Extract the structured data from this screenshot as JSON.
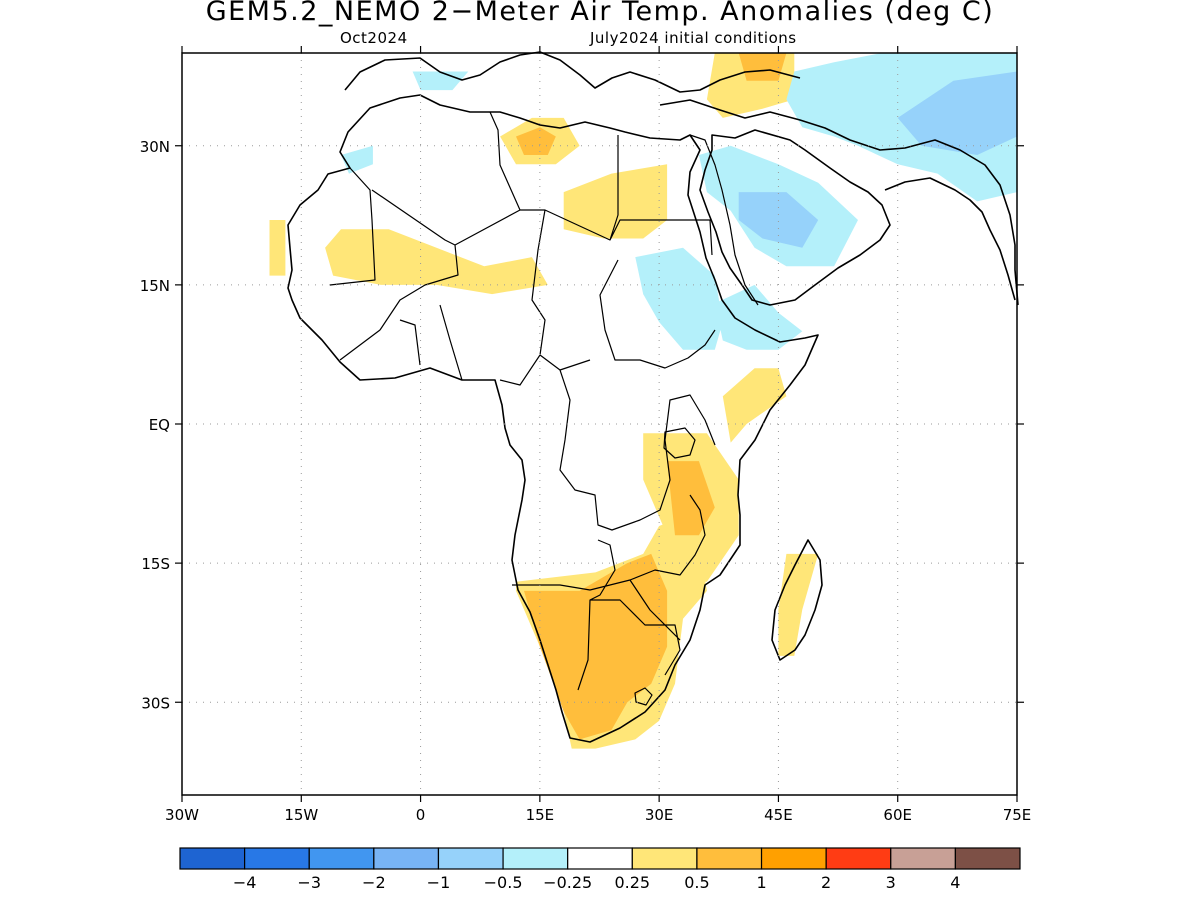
{
  "title": "GEM5.2_NEMO 2−Meter Air Temp. Anomalies (deg C)",
  "subtitle_left": "Oct2024",
  "subtitle_right": "July2024 initial conditions",
  "map": {
    "lon_range": [
      -30,
      75
    ],
    "lat_range": [
      -40,
      40
    ],
    "x_ticks": [
      {
        "value": -30,
        "label": "30W"
      },
      {
        "value": -15,
        "label": "15W"
      },
      {
        "value": 0,
        "label": "0"
      },
      {
        "value": 15,
        "label": "15E"
      },
      {
        "value": 30,
        "label": "30E"
      },
      {
        "value": 45,
        "label": "45E"
      },
      {
        "value": 60,
        "label": "60E"
      },
      {
        "value": 75,
        "label": "75E"
      }
    ],
    "y_ticks": [
      {
        "value": 30,
        "label": "30N"
      },
      {
        "value": 15,
        "label": "15N"
      },
      {
        "value": 0,
        "label": "EQ"
      },
      {
        "value": -15,
        "label": "15S"
      },
      {
        "value": -30,
        "label": "30S"
      }
    ],
    "grid": true
  },
  "colorbar": {
    "colors": [
      "#1e64d2",
      "#2878e6",
      "#4196f0",
      "#78b4f5",
      "#96d2fa",
      "#b4f0fa",
      "#ffffff",
      "#ffe678",
      "#ffbe3c",
      "#ffa000",
      "#ff3c14",
      "#c8a096",
      "#7d5046"
    ],
    "labels": [
      "−4",
      "−3",
      "−2",
      "−1",
      "−0.5",
      "−0.25",
      "0.25",
      "0.5",
      "1",
      "2",
      "3",
      "4"
    ]
  },
  "anomaly_regions": [
    {
      "level": "0.5",
      "color": "#ffe678",
      "points": [
        [
          -19,
          22
        ],
        [
          -17,
          22
        ],
        [
          -17,
          16
        ],
        [
          -19,
          16
        ]
      ]
    },
    {
      "level": "0.5",
      "color": "#ffe678",
      "points": [
        [
          -10,
          21
        ],
        [
          -4,
          21
        ],
        [
          2,
          19
        ],
        [
          8,
          17
        ],
        [
          14,
          18
        ],
        [
          16,
          15
        ],
        [
          9,
          14
        ],
        [
          2,
          15
        ],
        [
          -5,
          15
        ],
        [
          -11,
          16
        ],
        [
          -12,
          19
        ]
      ]
    },
    {
      "level": "0.5",
      "color": "#ffe678",
      "points": [
        [
          18,
          25
        ],
        [
          24,
          27
        ],
        [
          31,
          28
        ],
        [
          31,
          22
        ],
        [
          28,
          20
        ],
        [
          23,
          20
        ],
        [
          18,
          21
        ]
      ]
    },
    {
      "level": "0.5",
      "color": "#ffe678",
      "points": [
        [
          10,
          31
        ],
        [
          14,
          33
        ],
        [
          18,
          33
        ],
        [
          20,
          30
        ],
        [
          17,
          28
        ],
        [
          12,
          28
        ]
      ]
    },
    {
      "level": "0.5",
      "color": "#ffe678",
      "points": [
        [
          37,
          40
        ],
        [
          47,
          40
        ],
        [
          47,
          35
        ],
        [
          43,
          34
        ],
        [
          38,
          33
        ],
        [
          36,
          35
        ]
      ]
    },
    {
      "level": "0.5",
      "color": "#ffe678",
      "points": [
        [
          38,
          3
        ],
        [
          42,
          6
        ],
        [
          45,
          6
        ],
        [
          46,
          3
        ],
        [
          41,
          0
        ],
        [
          39,
          -2
        ]
      ]
    },
    {
      "level": "0.5",
      "color": "#ffe678",
      "points": [
        [
          28,
          -1
        ],
        [
          36,
          -1
        ],
        [
          40,
          -6
        ],
        [
          40,
          -12
        ],
        [
          36,
          -17
        ],
        [
          33,
          -17
        ],
        [
          31,
          -12
        ],
        [
          28,
          -6
        ]
      ]
    },
    {
      "level": "0.5",
      "color": "#ffe678",
      "points": [
        [
          12,
          -17
        ],
        [
          22,
          -16
        ],
        [
          28,
          -14
        ],
        [
          30,
          -11
        ],
        [
          33,
          -10
        ],
        [
          35,
          -13
        ],
        [
          36,
          -18
        ],
        [
          33,
          -21
        ],
        [
          32,
          -28
        ],
        [
          30,
          -32
        ],
        [
          27,
          -34
        ],
        [
          22,
          -35
        ],
        [
          19,
          -35
        ],
        [
          18,
          -31
        ],
        [
          15,
          -24
        ],
        [
          12,
          -18
        ]
      ]
    },
    {
      "level": "0.5",
      "color": "#ffe678",
      "points": [
        [
          46,
          -14
        ],
        [
          50,
          -14
        ],
        [
          48,
          -20
        ],
        [
          47,
          -25
        ],
        [
          45,
          -25
        ],
        [
          45,
          -20
        ]
      ]
    },
    {
      "level": "1",
      "color": "#ffbe3c",
      "points": [
        [
          13,
          -18
        ],
        [
          20,
          -18
        ],
        [
          26,
          -15
        ],
        [
          29,
          -14
        ],
        [
          31,
          -18
        ],
        [
          31,
          -24
        ],
        [
          29,
          -28
        ],
        [
          26,
          -30
        ],
        [
          24,
          -33
        ],
        [
          20,
          -34
        ],
        [
          18,
          -31
        ],
        [
          15,
          -24
        ]
      ]
    },
    {
      "level": "1",
      "color": "#ffbe3c",
      "points": [
        [
          31,
          -4
        ],
        [
          35,
          -4
        ],
        [
          37,
          -9
        ],
        [
          35,
          -12
        ],
        [
          32,
          -12
        ]
      ]
    },
    {
      "level": "1",
      "color": "#ffbe3c",
      "points": [
        [
          12,
          31
        ],
        [
          15,
          32
        ],
        [
          17,
          31
        ],
        [
          16,
          29
        ],
        [
          13,
          29
        ]
      ]
    },
    {
      "level": "1",
      "color": "#ffbe3c",
      "points": [
        [
          40,
          40
        ],
        [
          46,
          40
        ],
        [
          45,
          37
        ],
        [
          41,
          37
        ]
      ]
    },
    {
      "level": "-0.25",
      "color": "#b4f0fa",
      "points": [
        [
          47,
          38
        ],
        [
          52,
          39
        ],
        [
          58,
          40
        ],
        [
          66,
          40
        ],
        [
          75,
          40
        ],
        [
          75,
          25
        ],
        [
          70,
          24
        ],
        [
          65,
          27
        ],
        [
          60,
          28
        ],
        [
          55,
          30
        ],
        [
          52,
          31
        ],
        [
          48,
          32
        ],
        [
          46,
          35
        ]
      ]
    },
    {
      "level": "-0.25",
      "color": "#b4f0fa",
      "points": [
        [
          35,
          29
        ],
        [
          39,
          30
        ],
        [
          45,
          28
        ],
        [
          50,
          26
        ],
        [
          55,
          22
        ],
        [
          52,
          17
        ],
        [
          46,
          17
        ],
        [
          42,
          19
        ],
        [
          39,
          23
        ],
        [
          36,
          25
        ]
      ]
    },
    {
      "level": "-0.25",
      "color": "#b4f0fa",
      "points": [
        [
          27,
          18
        ],
        [
          33,
          19
        ],
        [
          37,
          16
        ],
        [
          38,
          11
        ],
        [
          37,
          8
        ],
        [
          33,
          8
        ],
        [
          30,
          11
        ],
        [
          28,
          14
        ]
      ]
    },
    {
      "level": "-0.25",
      "color": "#b4f0fa",
      "points": [
        [
          37,
          13
        ],
        [
          42,
          15
        ],
        [
          45,
          12
        ],
        [
          48,
          10
        ],
        [
          45,
          8
        ],
        [
          41,
          8
        ],
        [
          38,
          9
        ]
      ]
    },
    {
      "level": "-0.25",
      "color": "#b4f0fa",
      "points": [
        [
          -10,
          29
        ],
        [
          -6,
          30
        ],
        [
          -6,
          28
        ],
        [
          -9,
          27
        ]
      ]
    },
    {
      "level": "-0.25",
      "color": "#b4f0fa",
      "points": [
        [
          -1,
          38
        ],
        [
          6,
          38
        ],
        [
          4,
          36
        ],
        [
          0,
          36
        ]
      ]
    },
    {
      "level": "-0.5",
      "color": "#96d2fa",
      "points": [
        [
          40,
          25
        ],
        [
          46,
          25
        ],
        [
          50,
          22
        ],
        [
          48,
          19
        ],
        [
          43,
          20
        ],
        [
          40,
          22
        ]
      ]
    },
    {
      "level": "-0.5",
      "color": "#96d2fa",
      "points": [
        [
          60,
          33
        ],
        [
          67,
          37
        ],
        [
          75,
          38
        ],
        [
          75,
          31
        ],
        [
          70,
          29
        ],
        [
          63,
          30
        ]
      ]
    }
  ]
}
